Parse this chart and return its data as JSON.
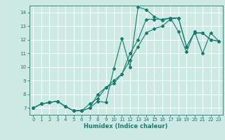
{
  "title": "",
  "xlabel": "Humidex (Indice chaleur)",
  "xlim": [
    -0.5,
    23.5
  ],
  "ylim": [
    6.5,
    14.5
  ],
  "yticks": [
    7,
    8,
    9,
    10,
    11,
    12,
    13,
    14
  ],
  "xticks": [
    0,
    1,
    2,
    3,
    4,
    5,
    6,
    7,
    8,
    9,
    10,
    11,
    12,
    13,
    14,
    15,
    16,
    17,
    18,
    19,
    20,
    21,
    22,
    23
  ],
  "bg_color": "#cce9e4",
  "grid_color": "#ffffff",
  "line_color": "#1a7a6e",
  "lines": [
    {
      "x": [
        0,
        1,
        2,
        3,
        4,
        5,
        6,
        7,
        8,
        9,
        10,
        11,
        12,
        13,
        14,
        15,
        16,
        17,
        18,
        19,
        20,
        21,
        22,
        23
      ],
      "y": [
        7.0,
        7.3,
        7.4,
        7.5,
        7.1,
        6.8,
        6.8,
        7.0,
        7.5,
        7.4,
        9.9,
        12.1,
        10.0,
        14.4,
        14.2,
        13.7,
        13.4,
        13.6,
        12.6,
        11.1,
        12.6,
        11.0,
        12.5,
        11.9
      ]
    },
    {
      "x": [
        0,
        1,
        2,
        3,
        4,
        5,
        6,
        7,
        8,
        9,
        10,
        11,
        12,
        13,
        14,
        15,
        16,
        17,
        18,
        19,
        20,
        21,
        22,
        23
      ],
      "y": [
        7.0,
        7.3,
        7.4,
        7.5,
        7.1,
        6.8,
        6.8,
        7.3,
        7.7,
        8.5,
        8.8,
        9.5,
        11.0,
        12.0,
        13.5,
        13.5,
        13.5,
        13.6,
        13.6,
        11.5,
        12.5,
        12.5,
        12.0,
        11.9
      ]
    },
    {
      "x": [
        0,
        1,
        2,
        3,
        4,
        5,
        6,
        7,
        8,
        9,
        10,
        11,
        12,
        13,
        14,
        15,
        16,
        17,
        18,
        19,
        20,
        21,
        22,
        23
      ],
      "y": [
        7.0,
        7.3,
        7.4,
        7.5,
        7.1,
        6.8,
        6.8,
        7.0,
        8.0,
        8.5,
        9.0,
        9.5,
        10.5,
        11.5,
        12.5,
        12.8,
        13.0,
        13.5,
        13.6,
        11.5,
        12.5,
        12.5,
        12.0,
        11.9
      ]
    }
  ]
}
